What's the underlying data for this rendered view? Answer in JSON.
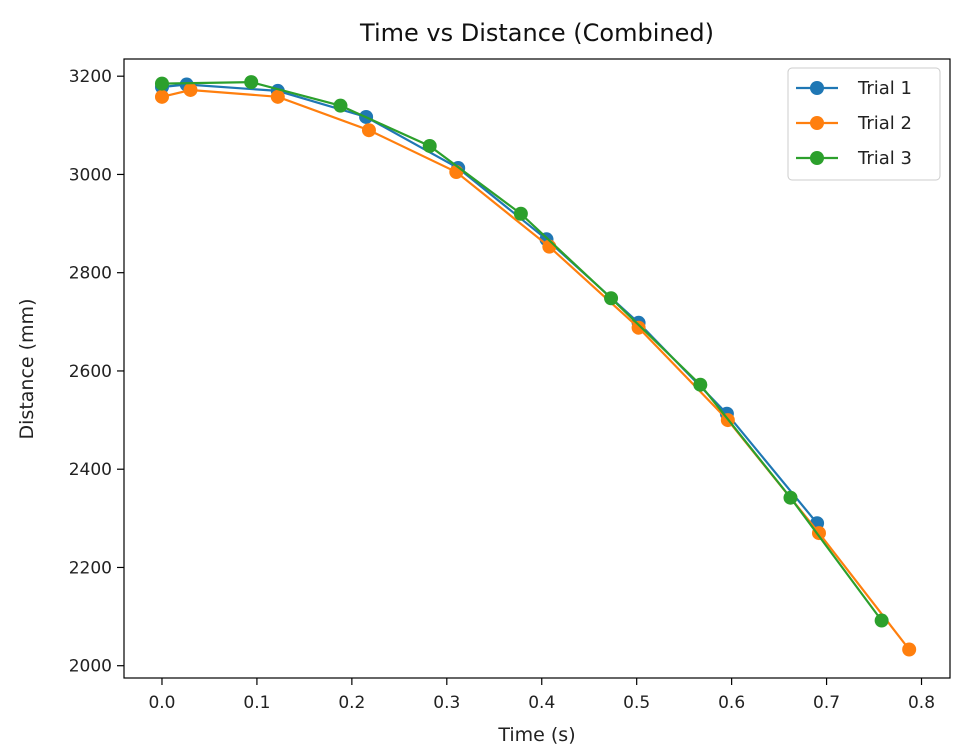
{
  "chart_data": {
    "type": "line",
    "title": "Time vs Distance (Combined)",
    "xlabel": "Time (s)",
    "ylabel": "Distance (mm)",
    "xlim": [
      -0.04,
      0.83
    ],
    "ylim": [
      1975,
      3235
    ],
    "xticks": [
      "0.0",
      "0.1",
      "0.2",
      "0.3",
      "0.4",
      "0.5",
      "0.6",
      "0.7",
      "0.8"
    ],
    "yticks": [
      "2000",
      "2200",
      "2400",
      "2600",
      "2800",
      "3000",
      "3200"
    ],
    "grid": false,
    "legend_position": "top-right",
    "series": [
      {
        "name": "Trial 1",
        "color": "#1f77b4",
        "x": [
          0.0,
          0.026,
          0.122,
          0.215,
          0.312,
          0.405,
          0.502,
          0.595,
          0.69
        ],
        "y": [
          3178,
          3183,
          3170,
          3117,
          3013,
          2868,
          2698,
          2513,
          2290
        ]
      },
      {
        "name": "Trial 2",
        "color": "#ff7f0e",
        "x": [
          0.0,
          0.03,
          0.122,
          0.218,
          0.31,
          0.408,
          0.502,
          0.596,
          0.692,
          0.787
        ],
        "y": [
          3158,
          3172,
          3158,
          3090,
          3005,
          2853,
          2688,
          2500,
          2270,
          2033
        ]
      },
      {
        "name": "Trial 3",
        "color": "#2ca02c",
        "x": [
          0.0,
          0.094,
          0.188,
          0.282,
          0.378,
          0.473,
          0.567,
          0.662,
          0.758
        ],
        "y": [
          3185,
          3188,
          3140,
          3058,
          2920,
          2748,
          2572,
          2342,
          2092
        ]
      }
    ]
  }
}
